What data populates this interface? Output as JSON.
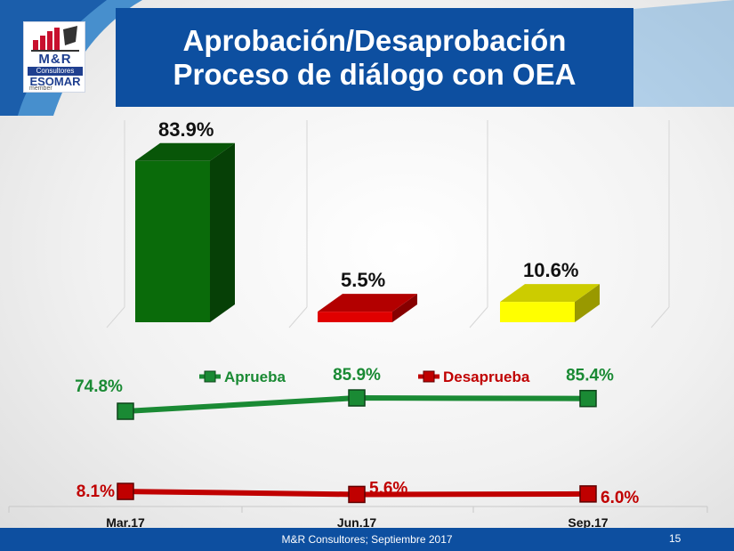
{
  "slide": {
    "title_line1": "Aprobación/Desaprobación",
    "title_line2": "Proceso de diálogo con OEA",
    "footer": "M&R Consultores; Septiembre 2017",
    "page_number": "15"
  },
  "logo": {
    "brand": "M&R",
    "subtitle": "Consultores",
    "org": "ESOMAR",
    "member": "member",
    "icon": "bar-chart-logo-icon"
  },
  "colors": {
    "title_bg": "#0d4fa0",
    "green": "#0a6b0a",
    "red": "#e00000",
    "yellow": "#ffff00",
    "line_green": "#1a8a34",
    "line_red": "#c00000"
  },
  "chart_data": [
    {
      "type": "bar",
      "categories": [
        "",
        "",
        ""
      ],
      "values": [
        83.9,
        5.5,
        10.6
      ],
      "data_labels": [
        "83.9%",
        "5.5%",
        "10.6%"
      ],
      "colors": [
        "#0a6b0a",
        "#e00000",
        "#ffff00"
      ],
      "style": "3d",
      "ylim": [
        0,
        100
      ]
    },
    {
      "type": "line",
      "x": [
        "Mar.17",
        "Jun.17",
        "Sep.17"
      ],
      "series": [
        {
          "name": "Aprueba",
          "values": [
            74.8,
            85.9,
            85.4
          ],
          "labels": [
            "74.8%",
            "85.9%",
            "85.4%"
          ],
          "color": "#1a8a34"
        },
        {
          "name": "Desaprueba",
          "values": [
            8.1,
            5.6,
            6.0
          ],
          "labels": [
            "8.1%",
            "5.6%",
            "6.0%"
          ],
          "color": "#c00000"
        }
      ],
      "legend": "top",
      "ylim": [
        0,
        100
      ]
    }
  ]
}
